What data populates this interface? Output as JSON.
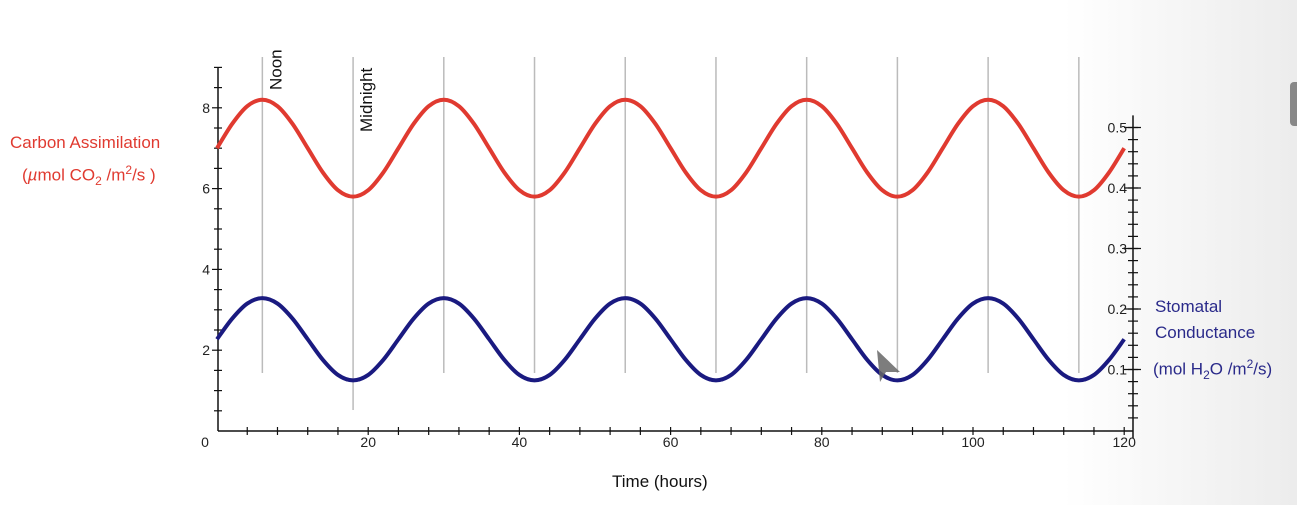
{
  "chart_data": {
    "type": "line",
    "xlabel": "Time (hours)",
    "xlim": [
      0,
      120
    ],
    "x_ticks": [
      0,
      20,
      40,
      60,
      80,
      100,
      120
    ],
    "left_axis": {
      "label_line1": "Carbon Assimilation",
      "label_line2_parts": [
        "(",
        "µ",
        "mol CO",
        "2",
        " /m",
        "2",
        "/s )"
      ],
      "ylim": [
        0,
        9
      ],
      "ticks": [
        8,
        6,
        4,
        2
      ],
      "color": "#e03a30"
    },
    "right_axis": {
      "label_line1": "Stomatal",
      "label_line2": "Conductance",
      "label_line3_parts": [
        "(mol H",
        "2",
        "O /m",
        "2",
        "/s)"
      ],
      "ylim": [
        0,
        0.52
      ],
      "ticks": [
        "0.5",
        "0.4",
        "0.3",
        "0.2",
        "0.1"
      ],
      "color": "#1a1a80"
    },
    "annotations": [
      {
        "text": "Noon",
        "x": 6
      },
      {
        "text": "Midnight",
        "x": 18
      }
    ],
    "vertical_lines_x": [
      6,
      18,
      30,
      42,
      54,
      66,
      78,
      90,
      102,
      114
    ],
    "x": [
      0,
      2,
      4,
      6,
      8,
      10,
      12,
      14,
      16,
      18,
      20,
      22,
      24,
      26,
      28,
      30,
      32,
      34,
      36,
      38,
      40,
      42,
      44,
      46,
      48,
      50,
      52,
      54,
      56,
      58,
      60,
      62,
      64,
      66,
      68,
      70,
      72,
      74,
      76,
      78,
      80,
      82,
      84,
      86,
      88,
      90,
      92,
      94,
      96,
      98,
      100,
      102,
      104,
      106,
      108,
      110,
      112,
      114,
      116,
      118,
      120
    ],
    "series": [
      {
        "axis": "left",
        "color": "#e03a30",
        "values": [
          7,
          7.6,
          8.04,
          8.2,
          8.04,
          7.6,
          7,
          6.4,
          5.96,
          5.8,
          5.96,
          6.4,
          7,
          7.6,
          8.04,
          8.2,
          8.04,
          7.6,
          7,
          6.4,
          5.96,
          5.8,
          5.96,
          6.4,
          7,
          7.6,
          8.04,
          8.2,
          8.04,
          7.6,
          7,
          6.4,
          5.96,
          5.8,
          5.96,
          6.4,
          7,
          7.6,
          8.04,
          8.2,
          8.04,
          7.6,
          7,
          6.4,
          5.96,
          5.8,
          5.96,
          6.4,
          7,
          7.6,
          8.04,
          8.2,
          8.04,
          7.6,
          7,
          6.4,
          5.96,
          5.8,
          5.96,
          6.4,
          7
        ]
      },
      {
        "axis": "right",
        "color": "#1a1a80",
        "values": [
          0.15,
          0.184,
          0.209,
          0.218,
          0.209,
          0.184,
          0.15,
          0.116,
          0.091,
          0.082,
          0.091,
          0.116,
          0.15,
          0.184,
          0.209,
          0.218,
          0.209,
          0.184,
          0.15,
          0.116,
          0.091,
          0.082,
          0.091,
          0.116,
          0.15,
          0.184,
          0.209,
          0.218,
          0.209,
          0.184,
          0.15,
          0.116,
          0.091,
          0.082,
          0.091,
          0.116,
          0.15,
          0.184,
          0.209,
          0.218,
          0.209,
          0.184,
          0.15,
          0.116,
          0.091,
          0.082,
          0.091,
          0.116,
          0.15,
          0.184,
          0.209,
          0.218,
          0.209,
          0.184,
          0.15,
          0.116,
          0.091,
          0.082,
          0.091,
          0.116,
          0.15
        ]
      }
    ]
  }
}
